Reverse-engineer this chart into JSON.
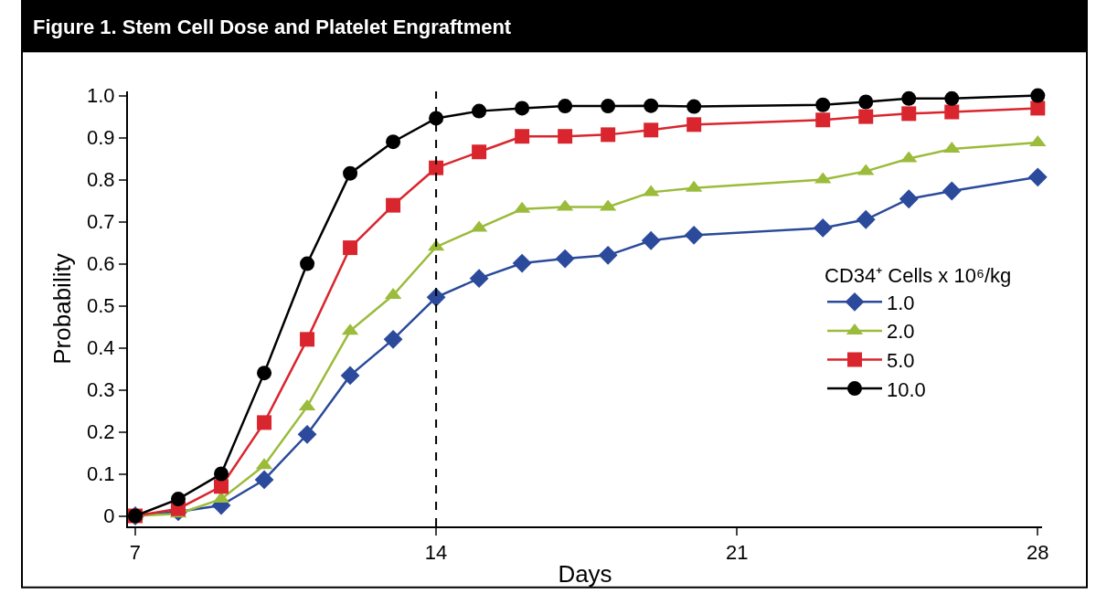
{
  "chart_data": {
    "type": "line",
    "title": "Figure 1. Stem Cell Dose and Platelet Engraftment",
    "xlabel": "Days",
    "ylabel": "Probability",
    "legend_title": "CD34⁺ Cells x 10⁶/kg",
    "x": [
      7,
      8,
      9,
      10,
      11,
      12,
      13,
      14,
      15,
      16,
      17,
      18,
      19,
      20,
      23,
      24,
      25,
      26,
      28
    ],
    "series": [
      {
        "name": "1.0",
        "color": "#2b4a9b",
        "marker": "diamond",
        "values": [
          0,
          0.01,
          0.025,
          0.086,
          0.194,
          0.334,
          0.42,
          0.52,
          0.565,
          0.601,
          0.612,
          0.62,
          0.655,
          0.668,
          0.685,
          0.705,
          0.754,
          0.773,
          0.806
        ]
      },
      {
        "name": "2.0",
        "color": "#9bbb3b",
        "marker": "triangle",
        "values": [
          0,
          0.005,
          0.04,
          0.12,
          0.26,
          0.44,
          0.525,
          0.64,
          0.685,
          0.73,
          0.735,
          0.735,
          0.77,
          0.78,
          0.8,
          0.82,
          0.85,
          0.873,
          0.888
        ]
      },
      {
        "name": "5.0",
        "color": "#d9262e",
        "marker": "square",
        "values": [
          0,
          0.017,
          0.07,
          0.222,
          0.42,
          0.638,
          0.739,
          0.828,
          0.866,
          0.903,
          0.903,
          0.907,
          0.918,
          0.931,
          0.942,
          0.95,
          0.957,
          0.961,
          0.97
        ]
      },
      {
        "name": "10.0",
        "color": "#000000",
        "marker": "circle",
        "values": [
          0,
          0.04,
          0.1,
          0.34,
          0.6,
          0.815,
          0.89,
          0.946,
          0.963,
          0.97,
          0.975,
          0.975,
          0.976,
          0.974,
          0.978,
          0.985,
          0.993,
          0.993,
          1.0
        ]
      }
    ],
    "xlim": [
      6.83,
      28.1
    ],
    "xticks": [
      7,
      14,
      21,
      28
    ],
    "ylim": [
      -0.025,
      1.01
    ],
    "yticks": [
      0,
      0.1,
      0.2,
      0.3,
      0.4,
      0.5,
      0.6,
      0.7,
      0.8,
      0.9,
      {
        "value": 1,
        "label": "1.0"
      }
    ],
    "ref_lines": [
      {
        "axis": "x",
        "value": 14,
        "color": "#000000",
        "line_style": "dashed"
      }
    ],
    "legend": "right"
  }
}
